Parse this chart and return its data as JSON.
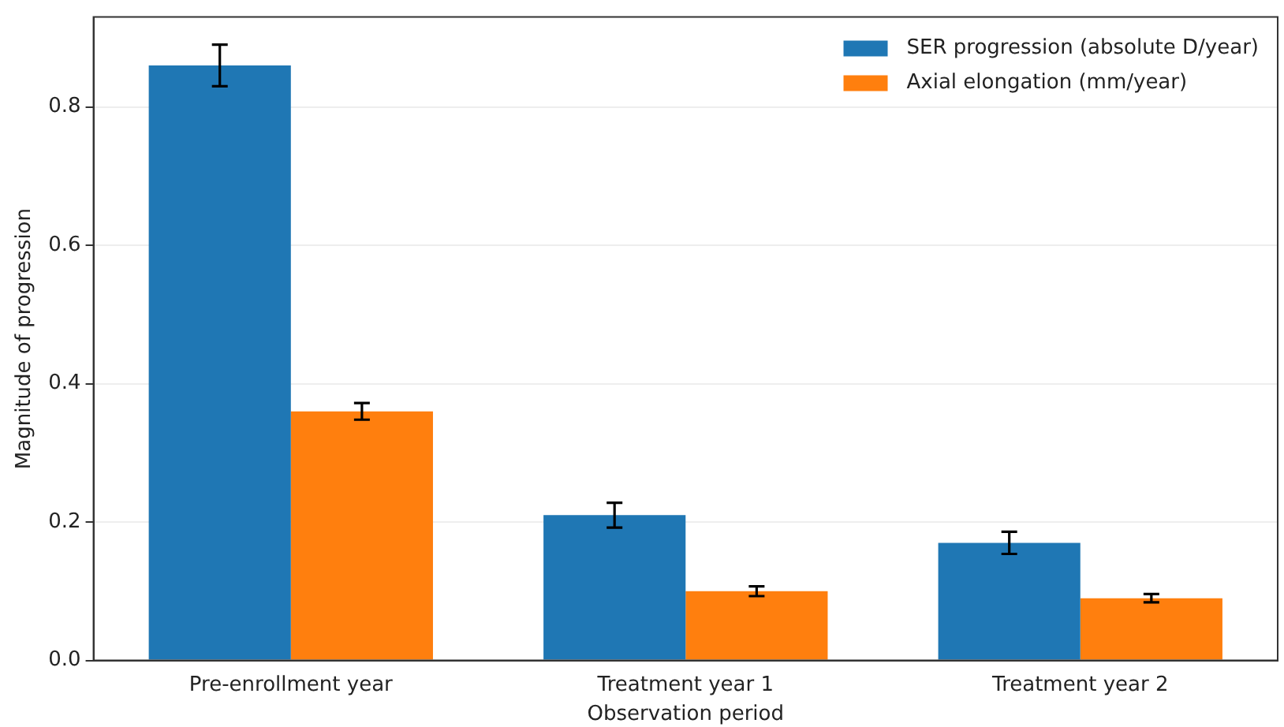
{
  "chart_data": {
    "type": "bar",
    "xlabel": "Observation period",
    "ylabel": "Magnitude of progression",
    "categories": [
      "Pre-enrollment year",
      "Treatment year 1",
      "Treatment year 2"
    ],
    "series": [
      {
        "name": "SER progression (absolute D/year)",
        "color": "#1f77b4",
        "values": [
          0.86,
          0.21,
          0.17
        ],
        "errors": [
          0.03,
          0.018,
          0.016
        ]
      },
      {
        "name": "Axial elongation (mm/year)",
        "color": "#ff7f0e",
        "values": [
          0.36,
          0.1,
          0.09
        ],
        "errors": [
          0.012,
          0.007,
          0.006
        ]
      }
    ],
    "ylim": [
      0,
      0.93
    ],
    "yticks": [
      {
        "value": 0,
        "label": "0.0"
      },
      0.2,
      0.4,
      0.6,
      0.8
    ],
    "grid": "y",
    "legend": "top right"
  }
}
